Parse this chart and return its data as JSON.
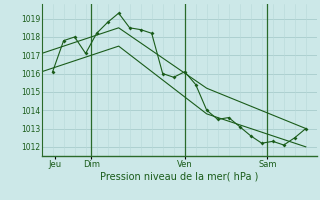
{
  "xlabel": "Pression niveau de la mer( hPa )",
  "bg_color": "#cce8e8",
  "grid_color_major": "#a8cccc",
  "grid_color_minor": "#b8d8d8",
  "line_color": "#1a5c1a",
  "ylim": [
    1011.5,
    1019.8
  ],
  "xlim": [
    0.0,
    12.5
  ],
  "yticks": [
    1012,
    1013,
    1014,
    1015,
    1016,
    1017,
    1018,
    1019
  ],
  "series": [
    {
      "x": [
        0.5,
        1.0,
        1.5,
        2.0,
        2.5,
        3.0,
        3.5,
        4.0,
        4.5,
        5.0,
        5.5,
        6.0,
        6.5,
        7.0,
        7.5,
        8.0,
        8.5,
        9.0,
        9.5,
        10.0,
        10.5,
        11.0,
        11.5,
        12.0
      ],
      "y": [
        1016.1,
        1017.8,
        1018.0,
        1017.1,
        1018.2,
        1018.8,
        1019.3,
        1018.5,
        1018.4,
        1018.2,
        1016.0,
        1015.8,
        1016.1,
        1015.4,
        1014.0,
        1013.5,
        1013.6,
        1013.1,
        1012.6,
        1012.2,
        1012.3,
        1012.1,
        1012.5,
        1013.0
      ],
      "has_markers": true
    },
    {
      "x": [
        0.0,
        3.5,
        7.5,
        12.0
      ],
      "y": [
        1017.1,
        1018.5,
        1015.2,
        1013.0
      ],
      "has_markers": false
    },
    {
      "x": [
        0.0,
        3.5,
        7.5,
        12.0
      ],
      "y": [
        1016.1,
        1017.5,
        1013.8,
        1012.0
      ],
      "has_markers": false
    }
  ],
  "vlines": [
    2.25,
    6.5,
    10.25
  ],
  "xtick_positions": [
    0.6,
    2.25,
    6.5,
    10.25
  ],
  "xtick_labels": [
    "Jeu",
    "Dim",
    "Ven",
    "Sam"
  ]
}
